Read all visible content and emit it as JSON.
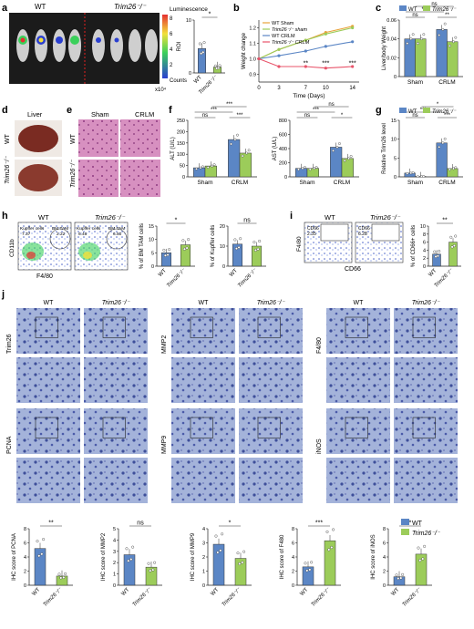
{
  "colors": {
    "wt": "#5b86c5",
    "ko": "#9ccc5a",
    "sham_line": "#e8a33b",
    "ko_sham": "#9ccc5a",
    "wt_crlm": "#5b86c5",
    "ko_crlm": "#e8546a",
    "axis": "#222222",
    "tissue_bg": "#9aa9d2",
    "he_bg": "#c97bb0"
  },
  "panels": {
    "a": "a",
    "b": "b",
    "c": "c",
    "d": "d",
    "e": "e",
    "f": "f",
    "g": "g",
    "h": "h",
    "i": "i",
    "j": "j"
  },
  "panel_a": {
    "wt": "WT",
    "ko": "Trim26⁻/⁻",
    "luminescence": "Luminescence",
    "counts": "Counts",
    "x10": "x10⁴",
    "cb_ticks": [
      "8",
      "6",
      "4",
      "2"
    ],
    "roi_ylabel": "ROI",
    "roi_yticks": [
      "0",
      "5",
      "10"
    ],
    "roi_sig": "*",
    "roi_x": [
      "WT",
      "Trim26⁻/⁻"
    ]
  },
  "chart_data": [
    {
      "id": "a_roi",
      "type": "bar",
      "categories": [
        "WT",
        "Trim26⁻/⁻"
      ],
      "values": [
        4.6,
        1.1
      ],
      "ylabel": "ROI",
      "ylim": [
        0,
        10
      ],
      "sig": "*"
    },
    {
      "id": "b",
      "type": "line",
      "xlabel": "Time (Days)",
      "ylabel": "Weight change",
      "x": [
        0,
        3,
        7,
        10,
        14
      ],
      "ylim": [
        0.85,
        1.25
      ],
      "yticks": [
        0.9,
        1.0,
        1.1,
        1.2
      ],
      "series": [
        {
          "name": "WT Sham",
          "values": [
            1.0,
            1.06,
            1.12,
            1.17,
            1.21
          ]
        },
        {
          "name": "Trim26⁻/⁻ sham",
          "values": [
            1.0,
            1.06,
            1.12,
            1.16,
            1.2
          ]
        },
        {
          "name": "WT CRLM",
          "values": [
            1.0,
            1.02,
            1.05,
            1.08,
            1.11
          ]
        },
        {
          "name": "Trim26⁻/⁻ CRLM",
          "values": [
            1.0,
            0.95,
            0.95,
            0.94,
            0.95
          ]
        }
      ],
      "sig": [
        "**",
        "***",
        "***"
      ]
    },
    {
      "id": "c",
      "type": "bar",
      "categories": [
        "Sham",
        "CRLM"
      ],
      "series": [
        {
          "name": "WT",
          "values": [
            0.04,
            0.05
          ]
        },
        {
          "name": "Trim26⁻/⁻",
          "values": [
            0.04,
            0.037
          ]
        }
      ],
      "ylabel": "Liver/body Weight",
      "ylim": [
        0,
        0.06
      ],
      "yticks": [
        "0",
        "0.02",
        "0.04",
        "0.06"
      ]
    },
    {
      "id": "f_alt",
      "type": "bar",
      "categories": [
        "Sham",
        "CRLM"
      ],
      "series": [
        {
          "name": "WT",
          "values": [
            40,
            165
          ]
        },
        {
          "name": "Trim26⁻/⁻",
          "values": [
            48,
            105
          ]
        }
      ],
      "ylabel": "ALT (U/L)",
      "ylim": [
        0,
        250
      ],
      "yticks": [
        "0",
        "50",
        "100",
        "150",
        "200",
        "250"
      ]
    },
    {
      "id": "f_ast",
      "type": "bar",
      "categories": [
        "Sham",
        "CRLM"
      ],
      "series": [
        {
          "name": "WT",
          "values": [
            120,
            420
          ]
        },
        {
          "name": "Trim26⁻/⁻",
          "values": [
            120,
            260
          ]
        }
      ],
      "ylabel": "AST (U/L)",
      "ylim": [
        0,
        800
      ],
      "yticks": [
        "0",
        "200",
        "400",
        "600",
        "800"
      ]
    },
    {
      "id": "g",
      "type": "bar",
      "categories": [
        "Sham",
        "CRLM"
      ],
      "series": [
        {
          "name": "WT",
          "values": [
            1,
            9
          ]
        },
        {
          "name": "Trim26⁻/⁻",
          "values": [
            0.1,
            2.2
          ]
        }
      ],
      "ylabel": "Relative Trim26 level",
      "ylim": [
        0,
        15
      ],
      "yticks": [
        "0",
        "5",
        "10",
        "15"
      ]
    },
    {
      "id": "h_bm",
      "type": "bar",
      "categories": [
        "WT",
        "Trim26⁻/⁻"
      ],
      "values": [
        5,
        8
      ],
      "ylabel": "% of BM TAM cells",
      "ylim": [
        0,
        15
      ],
      "yticks": [
        "0",
        "5",
        "10",
        "15"
      ],
      "sig": "*"
    },
    {
      "id": "h_kup",
      "type": "bar",
      "categories": [
        "WT",
        "Trim26⁻/⁻"
      ],
      "values": [
        11,
        10
      ],
      "ylabel": "% of Kupffer cells",
      "ylim": [
        0,
        20
      ],
      "yticks": [
        "0",
        "10",
        "20"
      ],
      "sig": "ns"
    },
    {
      "id": "i",
      "type": "bar",
      "categories": [
        "WT",
        "Trim26⁻/⁻"
      ],
      "values": [
        3,
        6
      ],
      "ylabel": "% of CD66+ cells",
      "ylim": [
        0,
        10
      ],
      "yticks": [
        "0",
        "2",
        "4",
        "6",
        "8",
        "10"
      ],
      "sig": "**"
    },
    {
      "id": "j_pcna",
      "type": "bar",
      "categories": [
        "WT",
        "Trim26⁻/⁻"
      ],
      "values": [
        5.2,
        1.3
      ],
      "ylabel": "IHC score of PCNA",
      "ylim": [
        0,
        8
      ],
      "yticks": [
        "0",
        "2",
        "4",
        "6",
        "8"
      ],
      "sig": "**"
    },
    {
      "id": "j_mmp2",
      "type": "bar",
      "categories": [
        "WT",
        "Trim26⁻/⁻"
      ],
      "values": [
        2.7,
        1.6
      ],
      "ylabel": "IHC score of MMP2",
      "ylim": [
        0,
        5
      ],
      "yticks": [
        "0",
        "1",
        "2",
        "3",
        "4",
        "5"
      ],
      "sig": "ns"
    },
    {
      "id": "j_mmp9",
      "type": "bar",
      "categories": [
        "WT",
        "Trim26⁻/⁻"
      ],
      "values": [
        2.9,
        1.9
      ],
      "ylabel": "IHC score of MMP9",
      "ylim": [
        0,
        4
      ],
      "yticks": [
        "0",
        "1",
        "2",
        "3",
        "4"
      ],
      "sig": "*"
    },
    {
      "id": "j_f480",
      "type": "bar",
      "categories": [
        "WT",
        "Trim26⁻/⁻"
      ],
      "values": [
        2.6,
        6.3
      ],
      "ylabel": "IHC score of F480",
      "ylim": [
        0,
        8
      ],
      "yticks": [
        "0",
        "2",
        "4",
        "6",
        "8"
      ],
      "sig": "***"
    },
    {
      "id": "j_inos",
      "type": "bar",
      "categories": [
        "WT",
        "Trim26⁻/⁻"
      ],
      "values": [
        1.2,
        4.4
      ],
      "ylabel": "IHC score of iNOS",
      "ylim": [
        0,
        8
      ],
      "yticks": [
        "0",
        "2",
        "4",
        "6",
        "8"
      ],
      "sig": "*"
    }
  ],
  "legend": {
    "wt": "WT",
    "ko": "Trim26⁻/⁻"
  },
  "panel_b": {
    "legend": [
      "WT Sham",
      "Trim26⁻/⁻ sham",
      "WT CRLM",
      "Trim26⁻/⁻ CRLM"
    ],
    "xlabel": "Time (Days)",
    "ylabel": "Weight change",
    "xticks": [
      "0",
      "3",
      "7",
      "10",
      "14"
    ],
    "yticks": [
      "0.9",
      "1.0",
      "1.1",
      "1.2"
    ],
    "sig": [
      "**",
      "***",
      "***"
    ]
  },
  "panel_d": {
    "title": "Liver",
    "rows": [
      "WT",
      "Trim26⁻/⁻"
    ]
  },
  "panel_e": {
    "cols": [
      "Sham",
      "CRLM"
    ],
    "rows": [
      "WT",
      "Trim26⁻/⁻"
    ]
  },
  "panel_h": {
    "wt": "WT",
    "ko": "Trim26⁻/⁻",
    "gate1": "Kupffer cells",
    "gate2": "BM TAM",
    "wt_v1": "7.37",
    "wt_v2": "2.22",
    "ko_v1": "6.46",
    "ko_v2": "6.50",
    "ylab": "CD11b",
    "xlab": "F4/80"
  },
  "panel_i": {
    "wt": "WT",
    "ko": "Trim26⁻/⁻",
    "gate": "CD66",
    "wt_v": "2.35",
    "ko_v": "6.28",
    "ylab": "F4/80",
    "xlab": "CD66"
  },
  "panel_j": {
    "groups": [
      {
        "wt": "WT",
        "ko": "Trim26⁻/⁻",
        "top": "Trim26",
        "bottom": "PCNA"
      },
      {
        "wt": "WT",
        "ko": "Trim26⁻/⁻",
        "top": "MMP2",
        "bottom": "MMP9"
      },
      {
        "wt": "WT",
        "ko": "Trim26⁻/⁻",
        "top": "F4/80",
        "bottom": "iNOS"
      }
    ]
  },
  "stats": {
    "ns": "ns",
    "one": "*",
    "two": "**",
    "three": "***"
  },
  "group_labels": {
    "sham": "Sham",
    "crlm": "CRLM"
  }
}
